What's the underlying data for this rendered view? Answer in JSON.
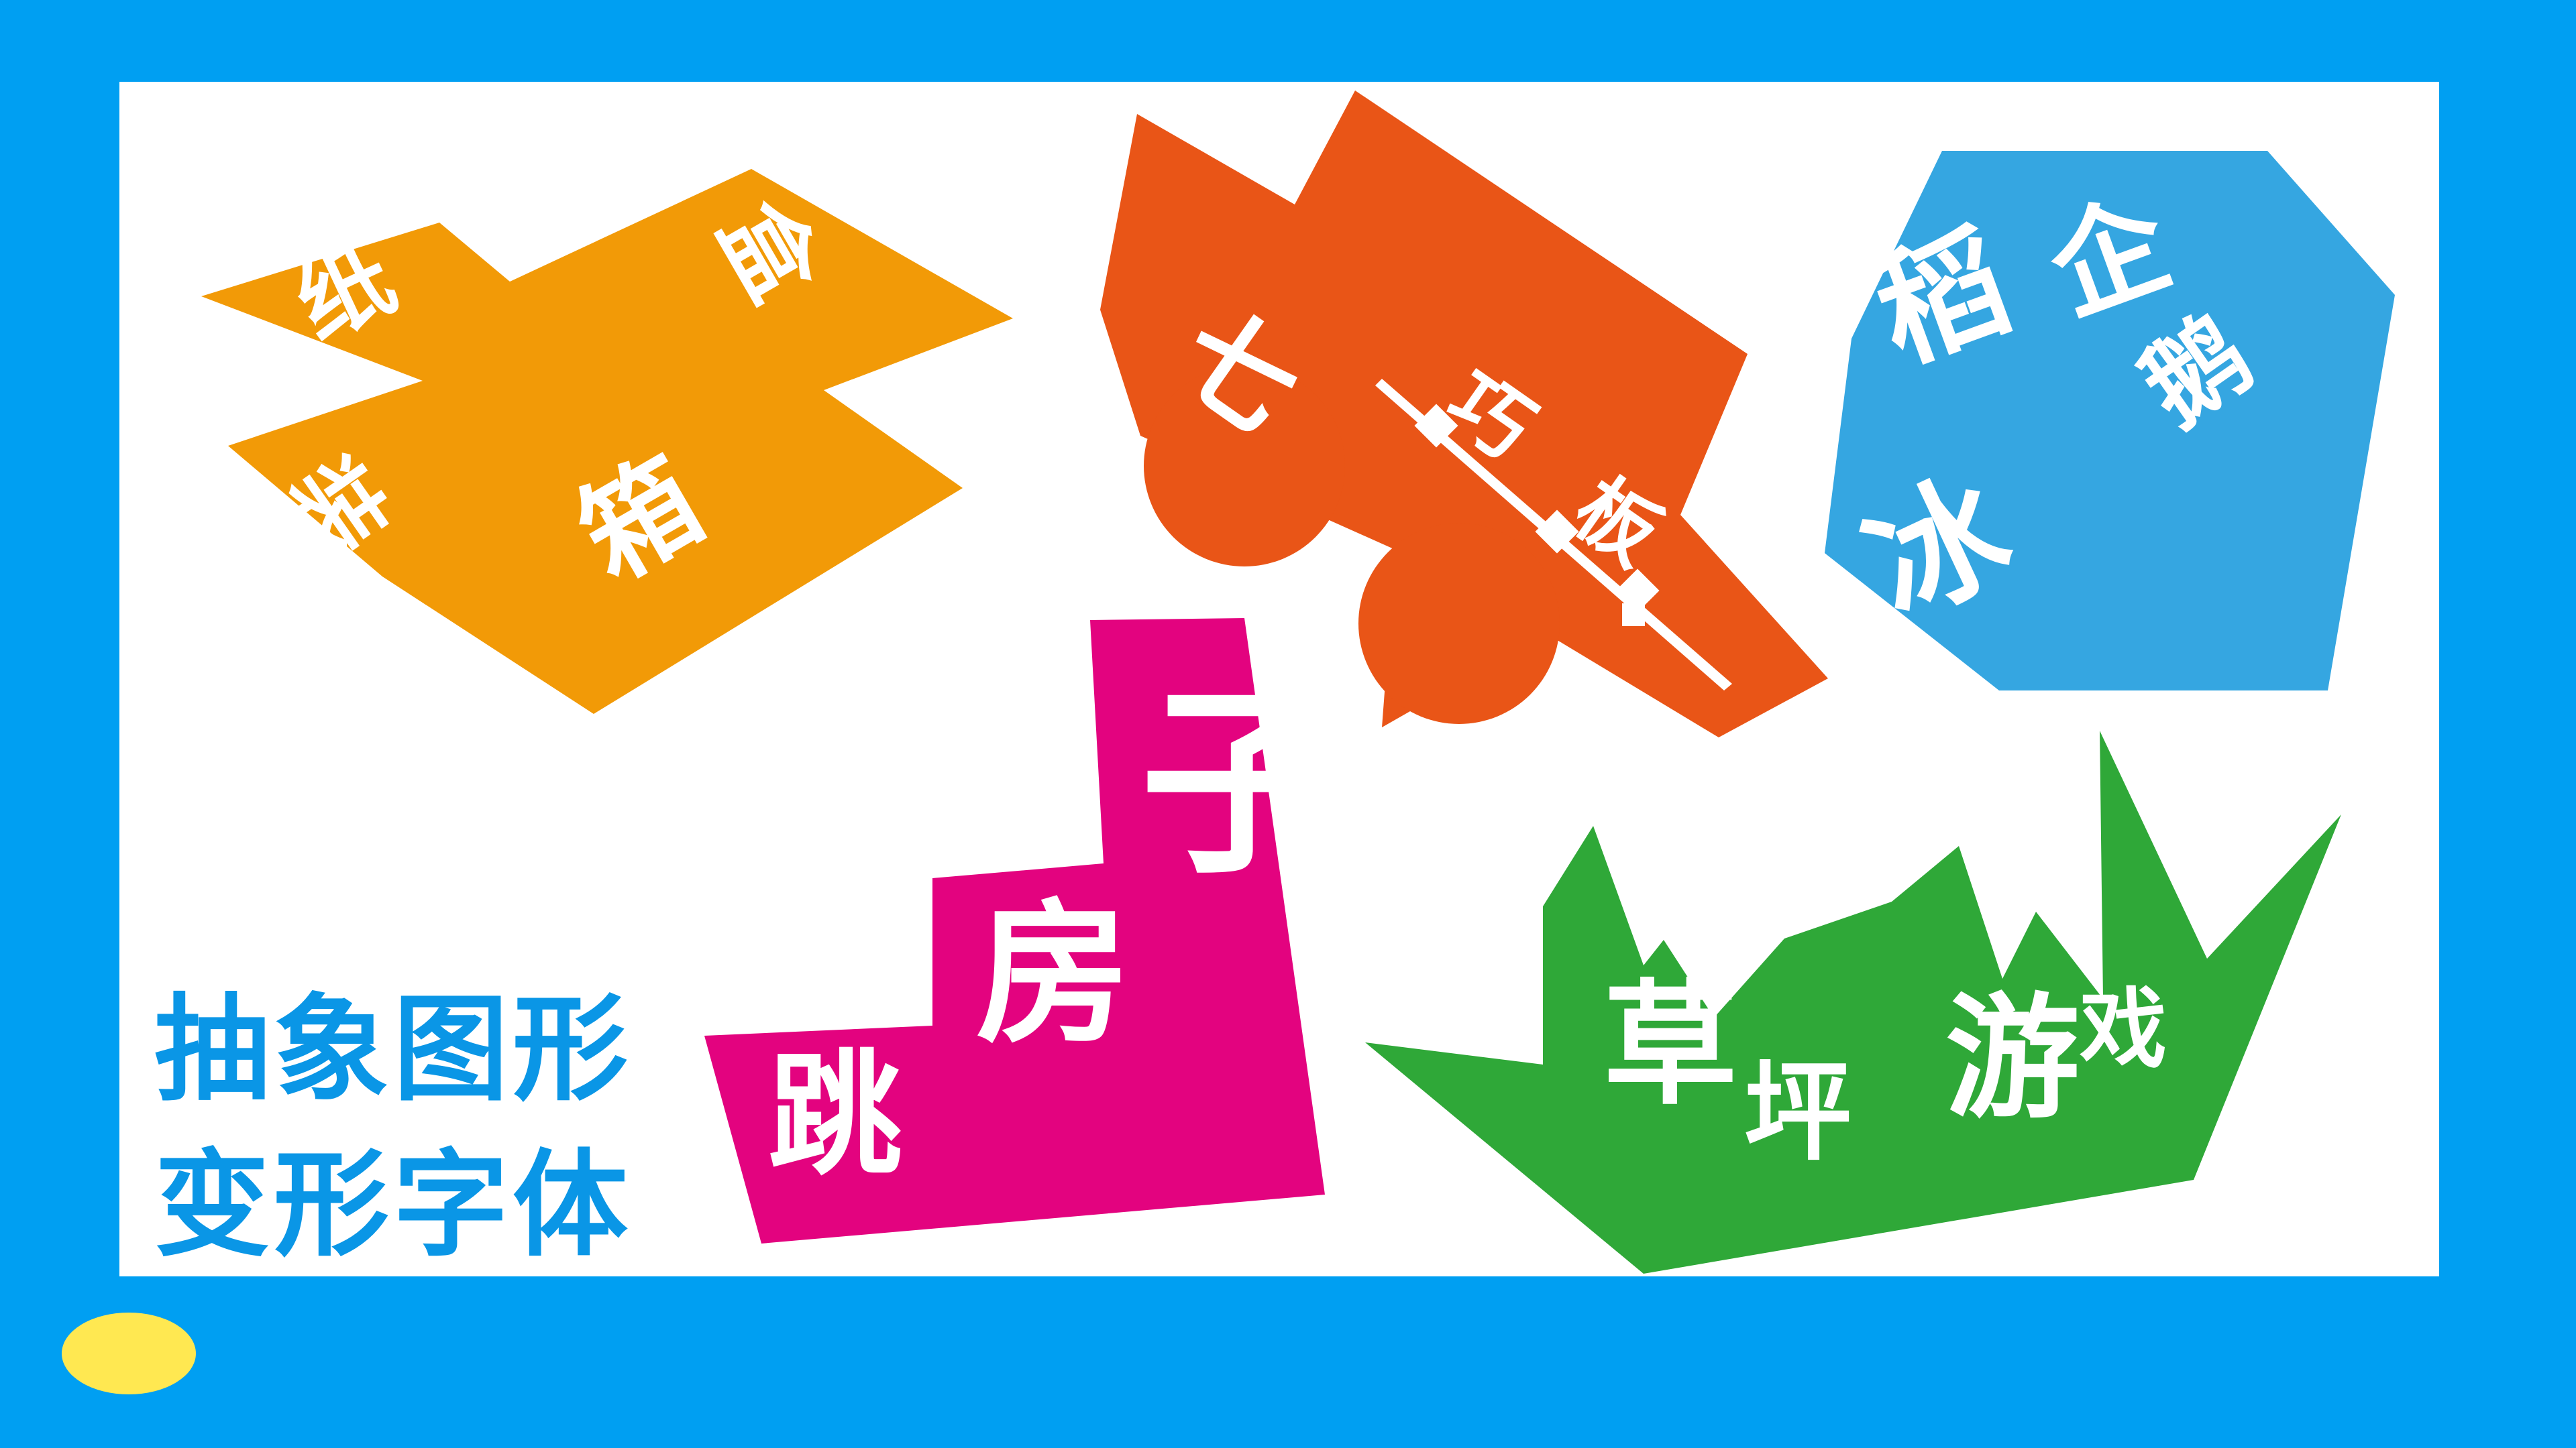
{
  "colors": {
    "frame_background": "#009FF2",
    "canvas": "#FFFFFF",
    "caption": "#0A96E6",
    "oval": "#FFE851",
    "shape_orange": "#F29A07",
    "shape_red_orange": "#E95517",
    "shape_sky_blue": "#35A6E1",
    "shape_magenta": "#E3037F",
    "shape_green": "#2FA838",
    "glyph": "#FFFFFF"
  },
  "caption": {
    "line1": "抽象图形",
    "line2": "变形字体"
  },
  "shapes": {
    "orange": {
      "chars": [
        "纸",
        "盒",
        "装",
        "箱"
      ]
    },
    "red_orange": {
      "chars": [
        "七",
        "巧",
        "板"
      ]
    },
    "sky_blue": {
      "chars": [
        "稻",
        "企",
        "鹅",
        "冰"
      ]
    },
    "magenta": {
      "chars": [
        "跳",
        "房",
        "子"
      ]
    },
    "green": {
      "chars": [
        "草",
        "坪",
        "游",
        "戏"
      ]
    }
  }
}
